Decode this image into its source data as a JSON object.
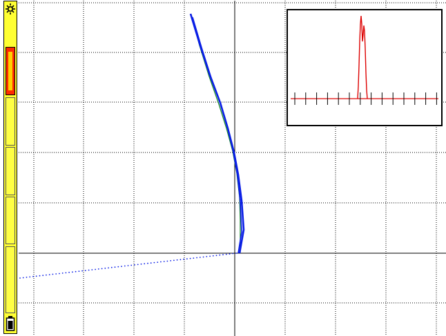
{
  "icons": {
    "settings": "gear-icon",
    "battery": "battery-icon"
  },
  "sidebar": {
    "color": "#ffff33",
    "active_color": "#ff2a00",
    "buttons": [
      {
        "id": "btn-1",
        "active": true
      },
      {
        "id": "btn-2",
        "active": false
      },
      {
        "id": "btn-3",
        "active": false
      },
      {
        "id": "btn-4",
        "active": false
      },
      {
        "id": "btn-5",
        "active": false
      }
    ]
  },
  "colors": {
    "trace_blue": "#0a1ee6",
    "trace_green": "#1a8a2a",
    "grid": "#000000",
    "inset_trace": "#dd0000"
  }
}
